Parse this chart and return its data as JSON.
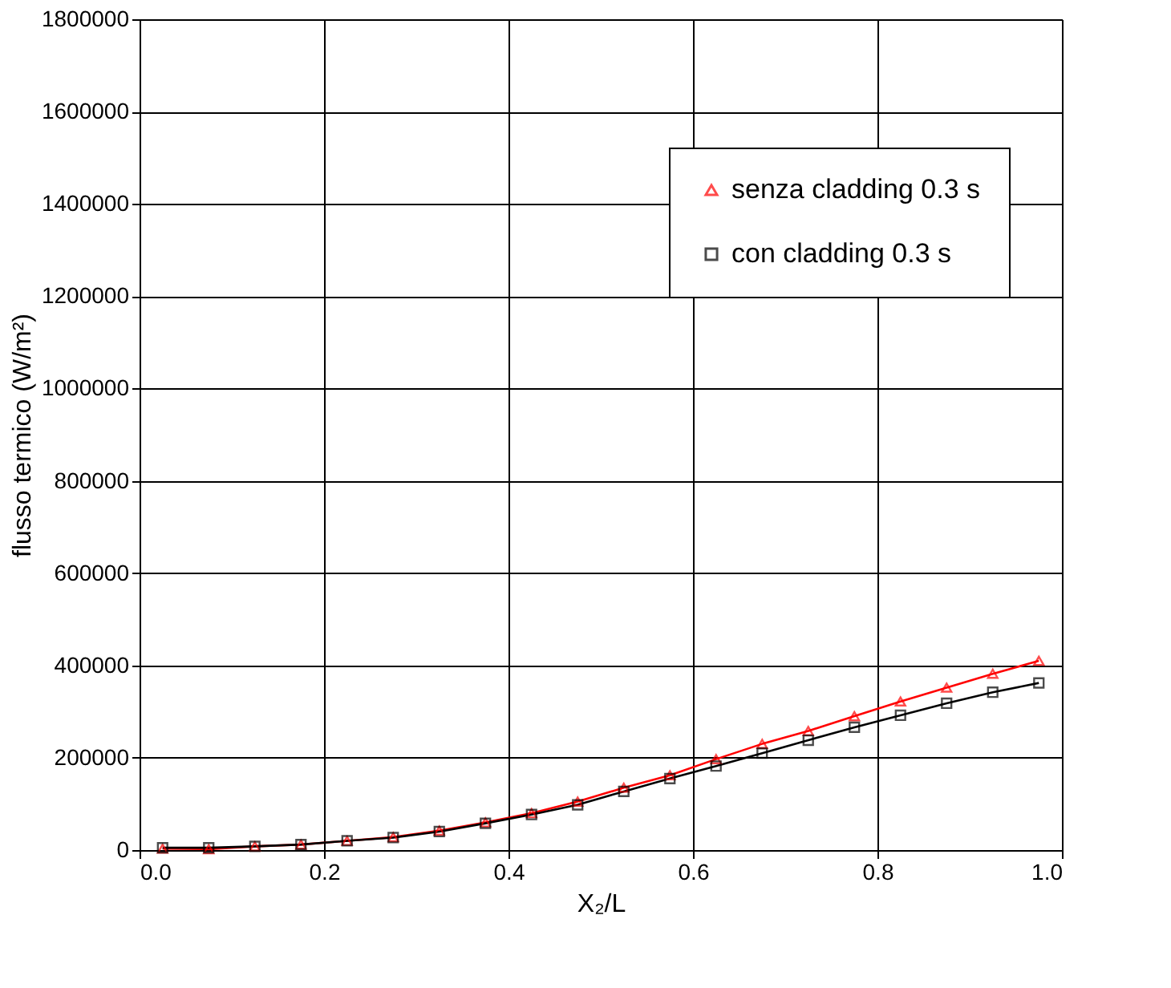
{
  "chart_data": {
    "type": "line",
    "xlabel": "X₂/L",
    "ylabel": "flusso termico (W/m²)",
    "x": [
      0.025,
      0.075,
      0.125,
      0.175,
      0.225,
      0.275,
      0.325,
      0.375,
      0.425,
      0.475,
      0.525,
      0.575,
      0.625,
      0.675,
      0.725,
      0.775,
      0.825,
      0.875,
      0.925,
      0.975
    ],
    "series": [
      {
        "name": "senza cladding 0.3 s",
        "color": "#ff0000",
        "marker": "triangle",
        "values": [
          3000,
          2000,
          8000,
          12000,
          20000,
          28000,
          42000,
          60000,
          80000,
          105000,
          135000,
          162000,
          197000,
          230000,
          258000,
          290000,
          322000,
          352000,
          382000,
          410000
        ]
      },
      {
        "name": "con cladding 0.3 s",
        "color": "#000000",
        "marker": "square",
        "values": [
          5000,
          5000,
          8000,
          12000,
          20000,
          27000,
          40000,
          58000,
          77000,
          98000,
          127000,
          155000,
          182000,
          210000,
          238000,
          266000,
          292000,
          318000,
          342000,
          362000
        ]
      }
    ],
    "xlim": [
      0,
      1
    ],
    "xticks": [
      {
        "value": 0,
        "label": "0.0"
      },
      {
        "value": 0.2,
        "label": "0.2"
      },
      {
        "value": 0.4,
        "label": "0.4"
      },
      {
        "value": 0.6,
        "label": "0.6"
      },
      {
        "value": 0.8,
        "label": "0.8"
      },
      {
        "value": 1,
        "label": "1.0"
      }
    ],
    "ylim": [
      0,
      1800000
    ],
    "yticks": [
      0,
      200000,
      400000,
      600000,
      800000,
      1000000,
      1200000,
      1400000,
      1600000,
      1800000
    ],
    "grid": true,
    "legend": "top right",
    "line_style": "solid"
  }
}
